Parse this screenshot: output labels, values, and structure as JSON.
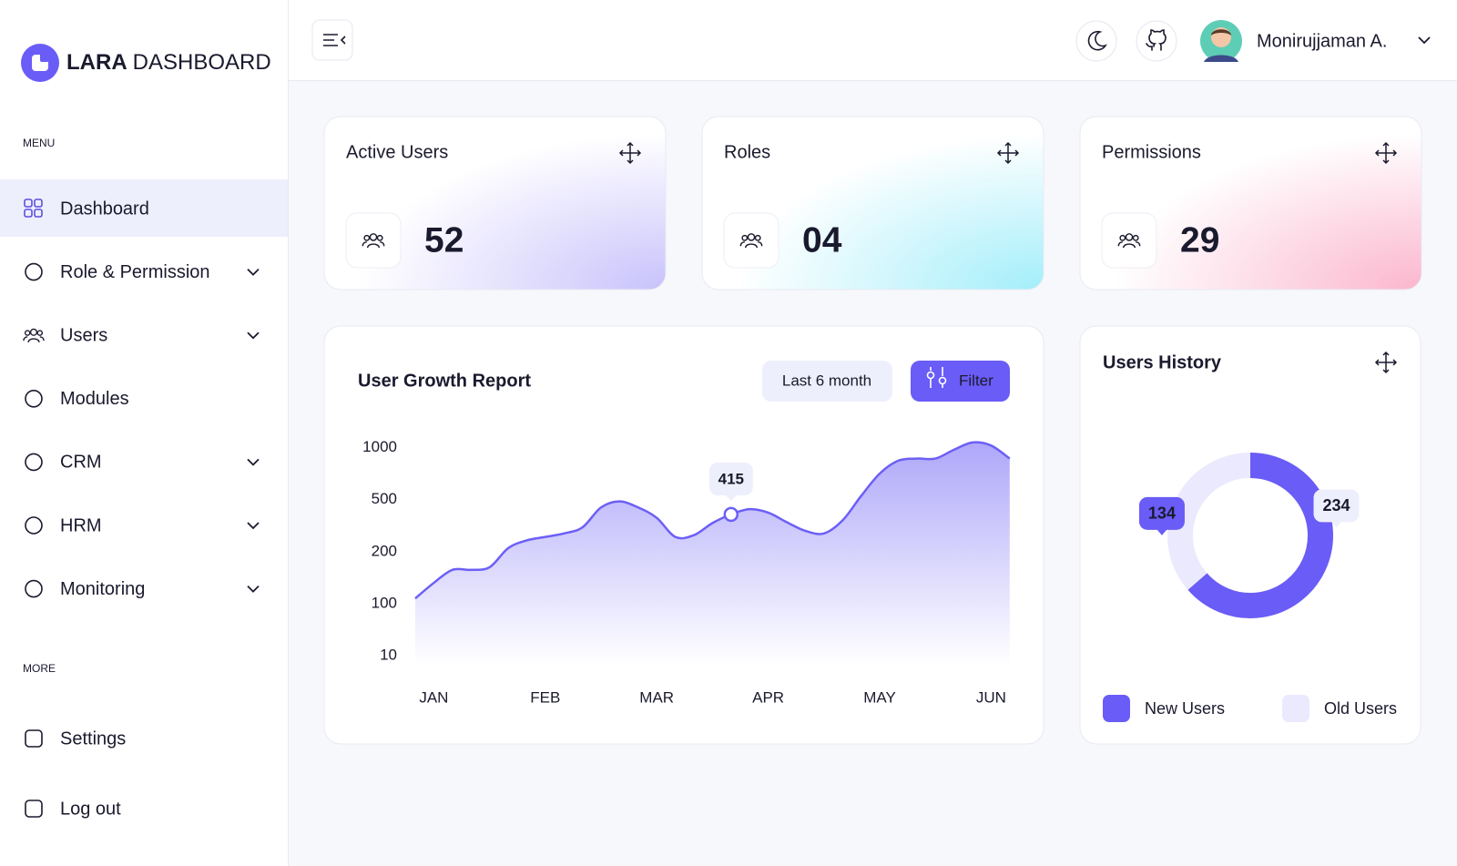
{
  "brand": [
    "LARA",
    "DASHBOARD"
  ],
  "sidebar": {
    "menu_label": "MENU",
    "menu": [
      {
        "label": "Dashboard",
        "active": true
      },
      {
        "label": "Role & Permission",
        "expandable": true
      },
      {
        "label": "Users",
        "expandable": true
      },
      {
        "label": "Modules"
      },
      {
        "label": "CRM",
        "expandable": true
      },
      {
        "label": "HRM",
        "expandable": true
      },
      {
        "label": "Monitoring",
        "expandable": true
      }
    ],
    "more_label": "MORE",
    "more": [
      {
        "label": "Settings"
      },
      {
        "label": "Log out"
      }
    ]
  },
  "header": {
    "user_name": "Monirujjaman A."
  },
  "stats": [
    {
      "title": "Active Users",
      "value": "52",
      "tint": "#c8c2fb"
    },
    {
      "title": "Roles",
      "value": "04",
      "tint": "#a3eefa"
    },
    {
      "title": "Permissions",
      "value": "29",
      "tint": "#fbb6cd"
    }
  ],
  "growth_chart": {
    "type": "area",
    "title": "User Growth Report",
    "period": "Last 6 month",
    "filter": "Filter",
    "categories": [
      null,
      "JAN",
      null,
      null,
      null,
      null,
      null,
      "FEB",
      null,
      null,
      null,
      null,
      null,
      "MAR",
      null,
      null,
      null,
      null,
      null,
      "APR",
      null,
      null,
      null,
      null,
      null,
      "MAY",
      null,
      null,
      null,
      null,
      null,
      "JUN",
      null
    ],
    "values": [
      110,
      140,
      165,
      165,
      170,
      220,
      265,
      285,
      305,
      340,
      455,
      490,
      455,
      395,
      285,
      295,
      365,
      415,
      445,
      425,
      370,
      320,
      305,
      380,
      535,
      750,
      875,
      895,
      895,
      980,
      1050,
      1020,
      895
    ],
    "value_labels": [
      null,
      null,
      null,
      null,
      null,
      null,
      null,
      null,
      null,
      null,
      null,
      null,
      null,
      null,
      null,
      null,
      null,
      "415",
      null,
      null,
      null,
      null,
      null,
      null,
      null,
      null,
      null,
      null,
      null,
      null,
      null,
      null,
      null
    ],
    "color": "#6c5ff5",
    "ylim": [
      10,
      1000
    ],
    "yticks": [
      10,
      100,
      200,
      500,
      1000
    ]
  },
  "history_chart": {
    "type": "donut",
    "title": "Users History",
    "categories": [
      "New Users",
      "Old Users"
    ],
    "values": [
      234,
      134
    ],
    "colors": [
      "#6a5cf6",
      "#ebe9fd"
    ]
  }
}
